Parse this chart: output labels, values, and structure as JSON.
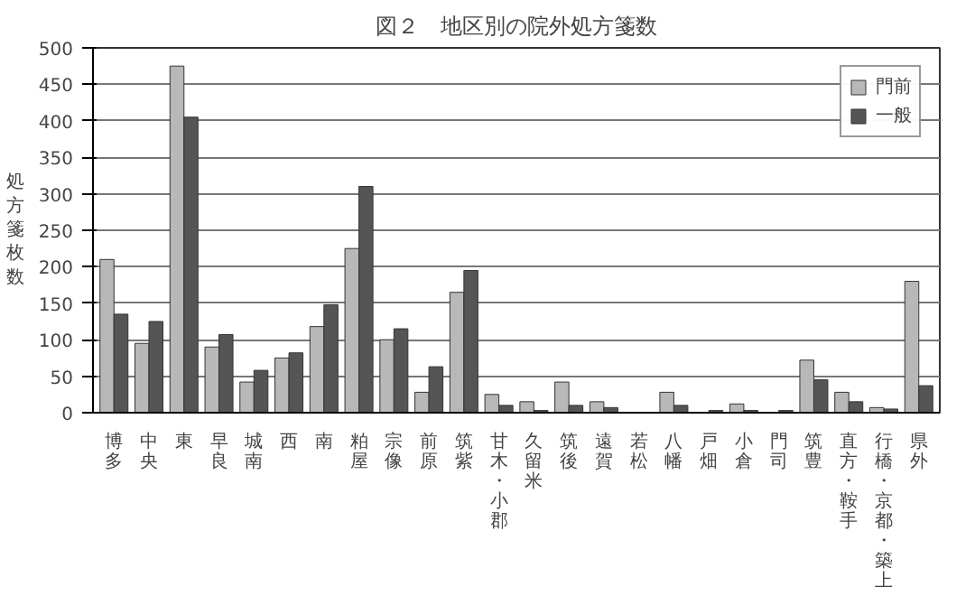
{
  "chart_data": {
    "type": "bar",
    "title": "図２　地区別の院外処方箋数",
    "ylabel": "処方箋枚数",
    "categories": [
      "博多",
      "中央",
      "東",
      "早良",
      "城南",
      "西",
      "南",
      "粕屋",
      "宗像",
      "前原",
      "筑紫",
      "甘木・小郡",
      "久留米",
      "筑後",
      "遠賀",
      "若松",
      "八幡",
      "戸畑",
      "小倉",
      "門司",
      "筑豊",
      "直方・鞍手",
      "行橋・京都・築上",
      "県外"
    ],
    "series": [
      {
        "name": "門前",
        "color": "#b8b8b8",
        "values": [
          210,
          95,
          475,
          90,
          42,
          75,
          118,
          225,
          100,
          28,
          165,
          25,
          15,
          42,
          15,
          null,
          28,
          null,
          12,
          null,
          72,
          28,
          7,
          180
        ]
      },
      {
        "name": "一般",
        "color": "#555555",
        "values": [
          135,
          125,
          405,
          107,
          58,
          82,
          148,
          310,
          115,
          63,
          195,
          10,
          3,
          10,
          7,
          null,
          10,
          3,
          3,
          3,
          45,
          15,
          5,
          37
        ]
      }
    ],
    "ylim": [
      0,
      500
    ],
    "yticks": [
      0,
      50,
      100,
      150,
      200,
      250,
      300,
      350,
      400,
      450,
      500
    ],
    "grid": "y",
    "legend": "top right"
  }
}
